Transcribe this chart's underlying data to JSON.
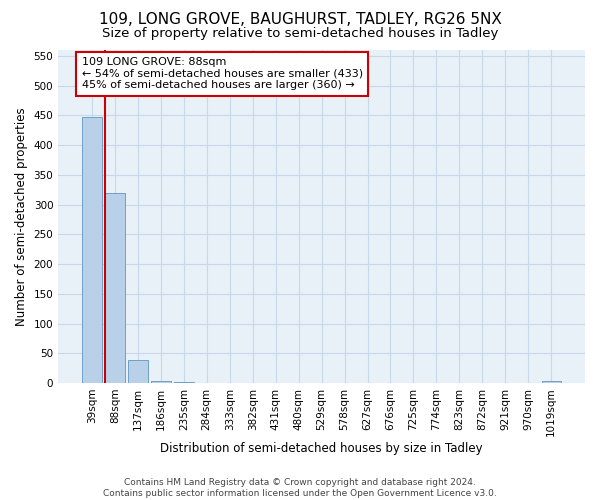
{
  "title": "109, LONG GROVE, BAUGHURST, TADLEY, RG26 5NX",
  "subtitle": "Size of property relative to semi-detached houses in Tadley",
  "xlabel": "Distribution of semi-detached houses by size in Tadley",
  "ylabel": "Number of semi-detached properties",
  "categories": [
    "39sqm",
    "88sqm",
    "137sqm",
    "186sqm",
    "235sqm",
    "284sqm",
    "333sqm",
    "382sqm",
    "431sqm",
    "480sqm",
    "529sqm",
    "578sqm",
    "627sqm",
    "676sqm",
    "725sqm",
    "774sqm",
    "823sqm",
    "872sqm",
    "921sqm",
    "970sqm",
    "1019sqm"
  ],
  "values": [
    447,
    320,
    38,
    3,
    1,
    0,
    0,
    0,
    0,
    0,
    0,
    0,
    0,
    0,
    0,
    0,
    0,
    0,
    0,
    0,
    3
  ],
  "bar_color": "#b8d0e8",
  "bar_edge_color": "#6ca0c8",
  "highlight_index": 1,
  "highlight_line_color": "#cc0000",
  "annotation_text": "109 LONG GROVE: 88sqm\n← 54% of semi-detached houses are smaller (433)\n45% of semi-detached houses are larger (360) →",
  "annotation_box_color": "#ffffff",
  "annotation_edge_color": "#cc0000",
  "ylim": [
    0,
    560
  ],
  "yticks": [
    0,
    50,
    100,
    150,
    200,
    250,
    300,
    350,
    400,
    450,
    500,
    550
  ],
  "footer": "Contains HM Land Registry data © Crown copyright and database right 2024.\nContains public sector information licensed under the Open Government Licence v3.0.",
  "bg_color": "#ffffff",
  "plot_bg_color": "#e8f0f8",
  "grid_color": "#c8d8e8",
  "title_fontsize": 11,
  "subtitle_fontsize": 9.5,
  "axis_label_fontsize": 8.5,
  "tick_fontsize": 7.5,
  "footer_fontsize": 6.5,
  "annotation_fontsize": 8
}
